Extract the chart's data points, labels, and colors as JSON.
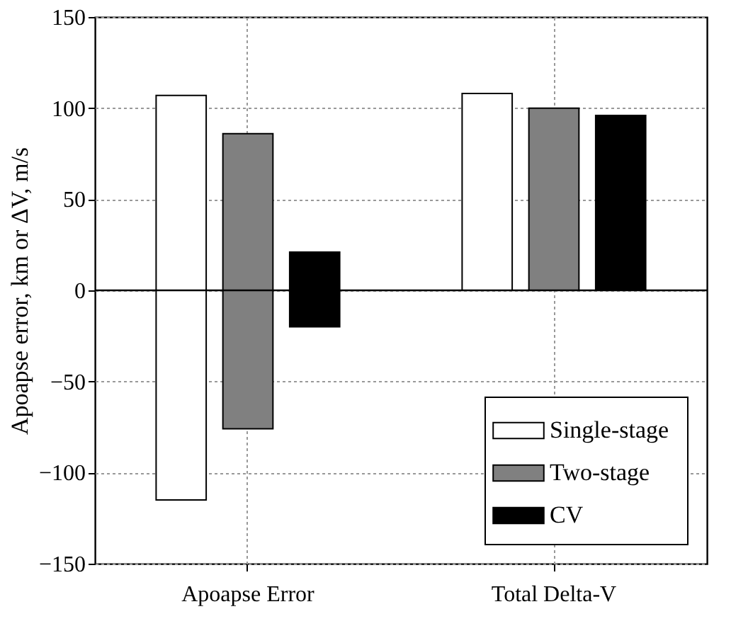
{
  "chart_data": {
    "type": "bar",
    "ylabel": "Apoapse error, km or ΔV, m/s",
    "categories": [
      "Apoapse Error",
      "Total Delta-V"
    ],
    "series": [
      {
        "name": "Single-stage",
        "color": "#ffffff",
        "values": [
          222,
          108
        ],
        "base": [
          -115,
          0
        ]
      },
      {
        "name": "Two-stage",
        "color": "#808080",
        "values": [
          162,
          100
        ],
        "base": [
          -76,
          0
        ]
      },
      {
        "name": "CV",
        "color": "#000000",
        "values": [
          41,
          96
        ],
        "base": [
          -20,
          0
        ]
      }
    ],
    "ylim": [
      -150,
      150
    ],
    "yticks": [
      -150,
      -100,
      -50,
      0,
      50,
      100,
      150
    ],
    "grid": true,
    "legend": "bottom right",
    "ref_lines": [
      {
        "axis": "y",
        "value": 0,
        "color": "#000000"
      }
    ]
  }
}
